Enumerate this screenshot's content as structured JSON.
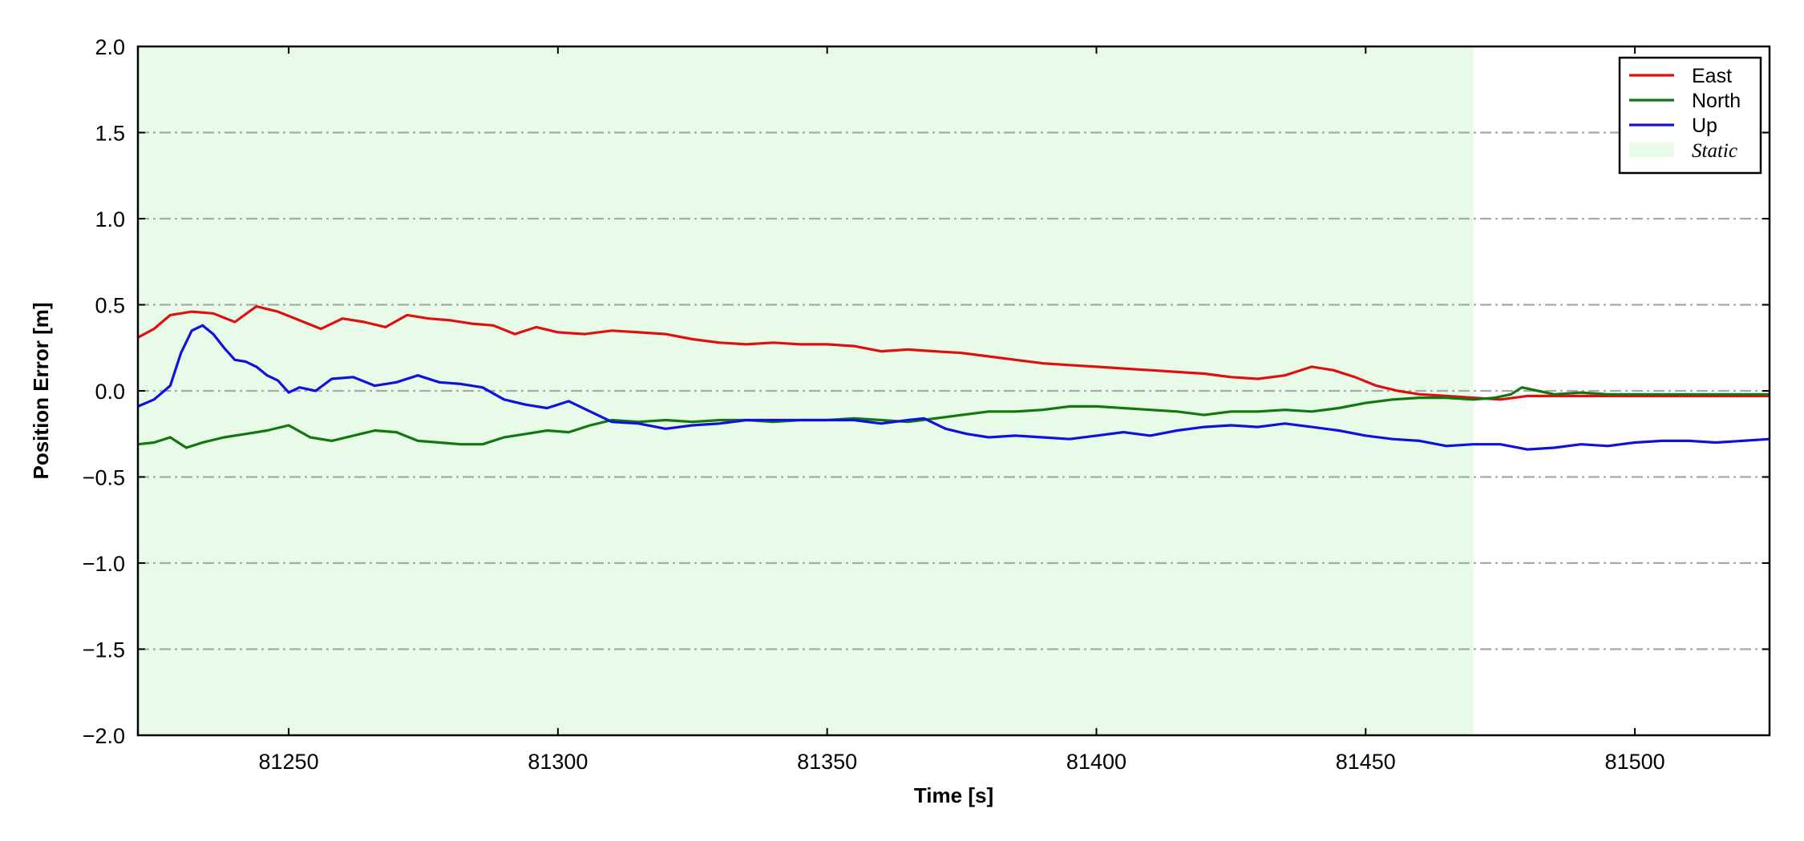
{
  "chart_data": {
    "type": "line",
    "xlabel": "Time [s]",
    "ylabel": "Position Error [m]",
    "xlim": [
      81222,
      81525
    ],
    "ylim": [
      -2.0,
      2.0
    ],
    "x_ticks": [
      81250,
      81300,
      81350,
      81400,
      81450,
      81500
    ],
    "y_ticks": [
      2.0,
      1.5,
      1.0,
      0.5,
      0.0,
      -0.5,
      -1.0,
      -1.5,
      -2.0
    ],
    "y_tick_labels": [
      "2.0",
      "1.5",
      "1.0",
      "0.5",
      "0.0",
      "−0.5",
      "−1.0",
      "−1.5",
      "−2.0"
    ],
    "grid": "horizontal dash-dot",
    "legend_position": "top-right",
    "shaded_region": {
      "name": "Static",
      "x_start": 81222,
      "x_end": 81470,
      "color": "#e8fbe8"
    },
    "series": [
      {
        "name": "East",
        "color": "#dd1111",
        "points": [
          [
            81222,
            0.31
          ],
          [
            81225,
            0.36
          ],
          [
            81228,
            0.44
          ],
          [
            81232,
            0.46
          ],
          [
            81236,
            0.45
          ],
          [
            81240,
            0.4
          ],
          [
            81244,
            0.49
          ],
          [
            81248,
            0.46
          ],
          [
            81252,
            0.41
          ],
          [
            81256,
            0.36
          ],
          [
            81260,
            0.42
          ],
          [
            81264,
            0.4
          ],
          [
            81268,
            0.37
          ],
          [
            81272,
            0.44
          ],
          [
            81276,
            0.42
          ],
          [
            81280,
            0.41
          ],
          [
            81284,
            0.39
          ],
          [
            81288,
            0.38
          ],
          [
            81292,
            0.33
          ],
          [
            81296,
            0.37
          ],
          [
            81300,
            0.34
          ],
          [
            81305,
            0.33
          ],
          [
            81310,
            0.35
          ],
          [
            81315,
            0.34
          ],
          [
            81320,
            0.33
          ],
          [
            81325,
            0.3
          ],
          [
            81330,
            0.28
          ],
          [
            81335,
            0.27
          ],
          [
            81340,
            0.28
          ],
          [
            81345,
            0.27
          ],
          [
            81350,
            0.27
          ],
          [
            81355,
            0.26
          ],
          [
            81360,
            0.23
          ],
          [
            81365,
            0.24
          ],
          [
            81370,
            0.23
          ],
          [
            81375,
            0.22
          ],
          [
            81380,
            0.2
          ],
          [
            81385,
            0.18
          ],
          [
            81390,
            0.16
          ],
          [
            81395,
            0.15
          ],
          [
            81400,
            0.14
          ],
          [
            81405,
            0.13
          ],
          [
            81410,
            0.12
          ],
          [
            81415,
            0.11
          ],
          [
            81420,
            0.1
          ],
          [
            81425,
            0.08
          ],
          [
            81430,
            0.07
          ],
          [
            81435,
            0.09
          ],
          [
            81440,
            0.14
          ],
          [
            81444,
            0.12
          ],
          [
            81448,
            0.08
          ],
          [
            81452,
            0.03
          ],
          [
            81456,
            0.0
          ],
          [
            81460,
            -0.02
          ],
          [
            81465,
            -0.03
          ],
          [
            81470,
            -0.04
          ],
          [
            81475,
            -0.05
          ],
          [
            81480,
            -0.03
          ],
          [
            81485,
            -0.03
          ],
          [
            81490,
            -0.03
          ],
          [
            81495,
            -0.03
          ],
          [
            81500,
            -0.03
          ],
          [
            81505,
            -0.03
          ],
          [
            81510,
            -0.03
          ],
          [
            81515,
            -0.03
          ],
          [
            81520,
            -0.03
          ],
          [
            81525,
            -0.03
          ]
        ]
      },
      {
        "name": "North",
        "color": "#117711",
        "points": [
          [
            81222,
            -0.31
          ],
          [
            81225,
            -0.3
          ],
          [
            81228,
            -0.27
          ],
          [
            81231,
            -0.33
          ],
          [
            81234,
            -0.3
          ],
          [
            81238,
            -0.27
          ],
          [
            81242,
            -0.25
          ],
          [
            81246,
            -0.23
          ],
          [
            81250,
            -0.2
          ],
          [
            81254,
            -0.27
          ],
          [
            81258,
            -0.29
          ],
          [
            81262,
            -0.26
          ],
          [
            81266,
            -0.23
          ],
          [
            81270,
            -0.24
          ],
          [
            81274,
            -0.29
          ],
          [
            81278,
            -0.3
          ],
          [
            81282,
            -0.31
          ],
          [
            81286,
            -0.31
          ],
          [
            81290,
            -0.27
          ],
          [
            81294,
            -0.25
          ],
          [
            81298,
            -0.23
          ],
          [
            81302,
            -0.24
          ],
          [
            81306,
            -0.2
          ],
          [
            81310,
            -0.17
          ],
          [
            81315,
            -0.18
          ],
          [
            81320,
            -0.17
          ],
          [
            81325,
            -0.18
          ],
          [
            81330,
            -0.17
          ],
          [
            81335,
            -0.17
          ],
          [
            81340,
            -0.18
          ],
          [
            81345,
            -0.17
          ],
          [
            81350,
            -0.17
          ],
          [
            81355,
            -0.16
          ],
          [
            81360,
            -0.17
          ],
          [
            81365,
            -0.18
          ],
          [
            81370,
            -0.16
          ],
          [
            81375,
            -0.14
          ],
          [
            81380,
            -0.12
          ],
          [
            81385,
            -0.12
          ],
          [
            81390,
            -0.11
          ],
          [
            81395,
            -0.09
          ],
          [
            81400,
            -0.09
          ],
          [
            81405,
            -0.1
          ],
          [
            81410,
            -0.11
          ],
          [
            81415,
            -0.12
          ],
          [
            81420,
            -0.14
          ],
          [
            81425,
            -0.12
          ],
          [
            81430,
            -0.12
          ],
          [
            81435,
            -0.11
          ],
          [
            81440,
            -0.12
          ],
          [
            81445,
            -0.1
          ],
          [
            81450,
            -0.07
          ],
          [
            81455,
            -0.05
          ],
          [
            81460,
            -0.04
          ],
          [
            81465,
            -0.04
          ],
          [
            81470,
            -0.05
          ],
          [
            81474,
            -0.04
          ],
          [
            81477,
            -0.02
          ],
          [
            81479,
            0.02
          ],
          [
            81482,
            0.0
          ],
          [
            81485,
            -0.02
          ],
          [
            81490,
            -0.01
          ],
          [
            81495,
            -0.02
          ],
          [
            81500,
            -0.02
          ],
          [
            81505,
            -0.02
          ],
          [
            81510,
            -0.02
          ],
          [
            81515,
            -0.02
          ],
          [
            81520,
            -0.02
          ],
          [
            81525,
            -0.02
          ]
        ]
      },
      {
        "name": "Up",
        "color": "#1111dd",
        "points": [
          [
            81222,
            -0.09
          ],
          [
            81225,
            -0.05
          ],
          [
            81228,
            0.03
          ],
          [
            81230,
            0.22
          ],
          [
            81232,
            0.35
          ],
          [
            81234,
            0.38
          ],
          [
            81236,
            0.33
          ],
          [
            81238,
            0.25
          ],
          [
            81240,
            0.18
          ],
          [
            81242,
            0.17
          ],
          [
            81244,
            0.14
          ],
          [
            81246,
            0.09
          ],
          [
            81248,
            0.06
          ],
          [
            81250,
            -0.01
          ],
          [
            81252,
            0.02
          ],
          [
            81255,
            0.0
          ],
          [
            81258,
            0.07
          ],
          [
            81262,
            0.08
          ],
          [
            81266,
            0.03
          ],
          [
            81270,
            0.05
          ],
          [
            81274,
            0.09
          ],
          [
            81278,
            0.05
          ],
          [
            81282,
            0.04
          ],
          [
            81286,
            0.02
          ],
          [
            81290,
            -0.05
          ],
          [
            81294,
            -0.08
          ],
          [
            81298,
            -0.1
          ],
          [
            81302,
            -0.06
          ],
          [
            81306,
            -0.12
          ],
          [
            81310,
            -0.18
          ],
          [
            81315,
            -0.19
          ],
          [
            81320,
            -0.22
          ],
          [
            81325,
            -0.2
          ],
          [
            81330,
            -0.19
          ],
          [
            81335,
            -0.17
          ],
          [
            81340,
            -0.17
          ],
          [
            81345,
            -0.17
          ],
          [
            81350,
            -0.17
          ],
          [
            81355,
            -0.17
          ],
          [
            81360,
            -0.19
          ],
          [
            81365,
            -0.17
          ],
          [
            81368,
            -0.16
          ],
          [
            81372,
            -0.22
          ],
          [
            81376,
            -0.25
          ],
          [
            81380,
            -0.27
          ],
          [
            81385,
            -0.26
          ],
          [
            81390,
            -0.27
          ],
          [
            81395,
            -0.28
          ],
          [
            81400,
            -0.26
          ],
          [
            81405,
            -0.24
          ],
          [
            81410,
            -0.26
          ],
          [
            81415,
            -0.23
          ],
          [
            81420,
            -0.21
          ],
          [
            81425,
            -0.2
          ],
          [
            81430,
            -0.21
          ],
          [
            81435,
            -0.19
          ],
          [
            81440,
            -0.21
          ],
          [
            81445,
            -0.23
          ],
          [
            81450,
            -0.26
          ],
          [
            81455,
            -0.28
          ],
          [
            81460,
            -0.29
          ],
          [
            81465,
            -0.32
          ],
          [
            81470,
            -0.31
          ],
          [
            81475,
            -0.31
          ],
          [
            81480,
            -0.34
          ],
          [
            81485,
            -0.33
          ],
          [
            81490,
            -0.31
          ],
          [
            81495,
            -0.32
          ],
          [
            81500,
            -0.3
          ],
          [
            81505,
            -0.29
          ],
          [
            81510,
            -0.29
          ],
          [
            81515,
            -0.3
          ],
          [
            81520,
            -0.29
          ],
          [
            81525,
            -0.28
          ]
        ]
      }
    ],
    "legend": [
      "East",
      "North",
      "Up",
      "Static"
    ]
  }
}
